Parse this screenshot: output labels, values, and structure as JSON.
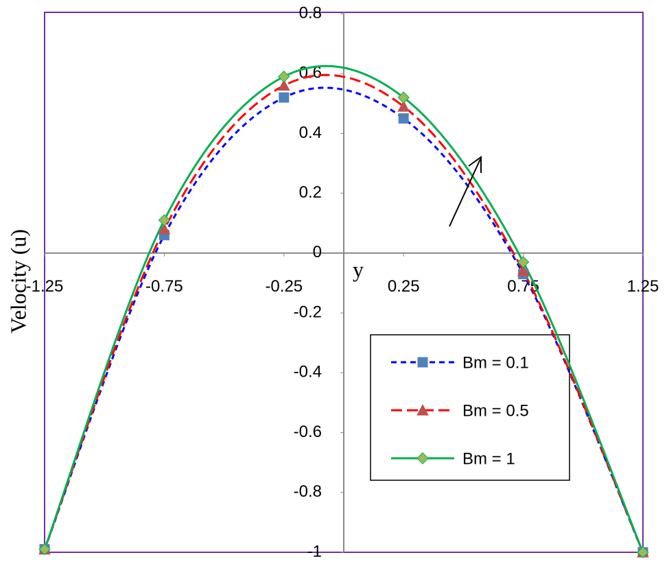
{
  "chart_data": {
    "type": "line",
    "x_label": "y",
    "y_label": "Velocity (u)",
    "x": [
      -1.25,
      -0.75,
      -0.25,
      0.25,
      0.75,
      1.25
    ],
    "series": [
      {
        "name": "Bm = 0.1",
        "color": "#0000ff",
        "marker_color": "#4f81bd",
        "marker": "square",
        "dash": "8,6",
        "values": [
          -0.99,
          0.06,
          0.52,
          0.45,
          -0.07,
          -1.0
        ]
      },
      {
        "name": "Bm = 0.5",
        "color": "#ff0000",
        "marker_color": "#c0504d",
        "marker": "triangle",
        "dash": "16,7",
        "values": [
          -0.99,
          0.08,
          0.56,
          0.49,
          -0.06,
          -1.0
        ]
      },
      {
        "name": "Bm = 1",
        "color": "#00b050",
        "marker_color": "#9bbb59",
        "marker": "diamond",
        "dash": "",
        "values": [
          -0.99,
          0.11,
          0.59,
          0.52,
          -0.03,
          -1.0
        ]
      }
    ],
    "xlim": [
      -1.25,
      1.25
    ],
    "xticks": [
      -1.25,
      -0.75,
      -0.25,
      0.25,
      0.75,
      1.25
    ],
    "ylim": [
      -1,
      0.8
    ],
    "yticks": [
      0.8,
      0.6,
      0.4,
      0.2,
      0,
      -0.2,
      -0.4,
      -0.6,
      -0.8,
      -1
    ]
  }
}
